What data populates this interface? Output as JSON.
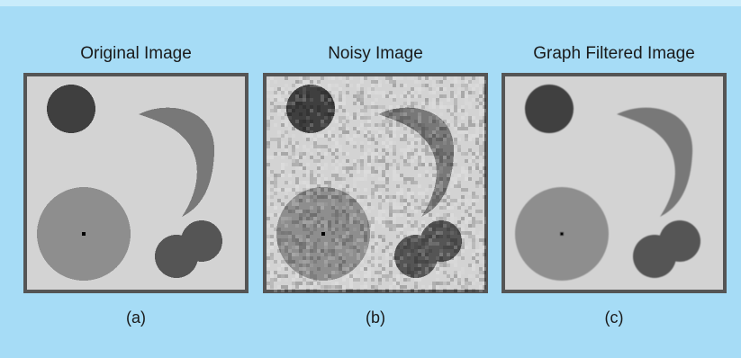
{
  "figure": {
    "panels": [
      {
        "id": "a",
        "title": "Original Image",
        "caption": "(a)",
        "style": "clean"
      },
      {
        "id": "b",
        "title": "Noisy Image",
        "caption": "(b)",
        "style": "noisy"
      },
      {
        "id": "c",
        "title": "Graph Filtered Image",
        "caption": "(c)",
        "style": "filtered"
      }
    ],
    "colors": {
      "page_background": "#a6dcf6",
      "top_strip": "#c9ecfb",
      "frame_border": "#555555",
      "image_background": "#d3d3d3",
      "dark_circle": "#3f3f3f",
      "crescent": "#787878",
      "big_disk": "#8e8e8e",
      "blob": "#555555",
      "center_dot": "#000000"
    }
  }
}
